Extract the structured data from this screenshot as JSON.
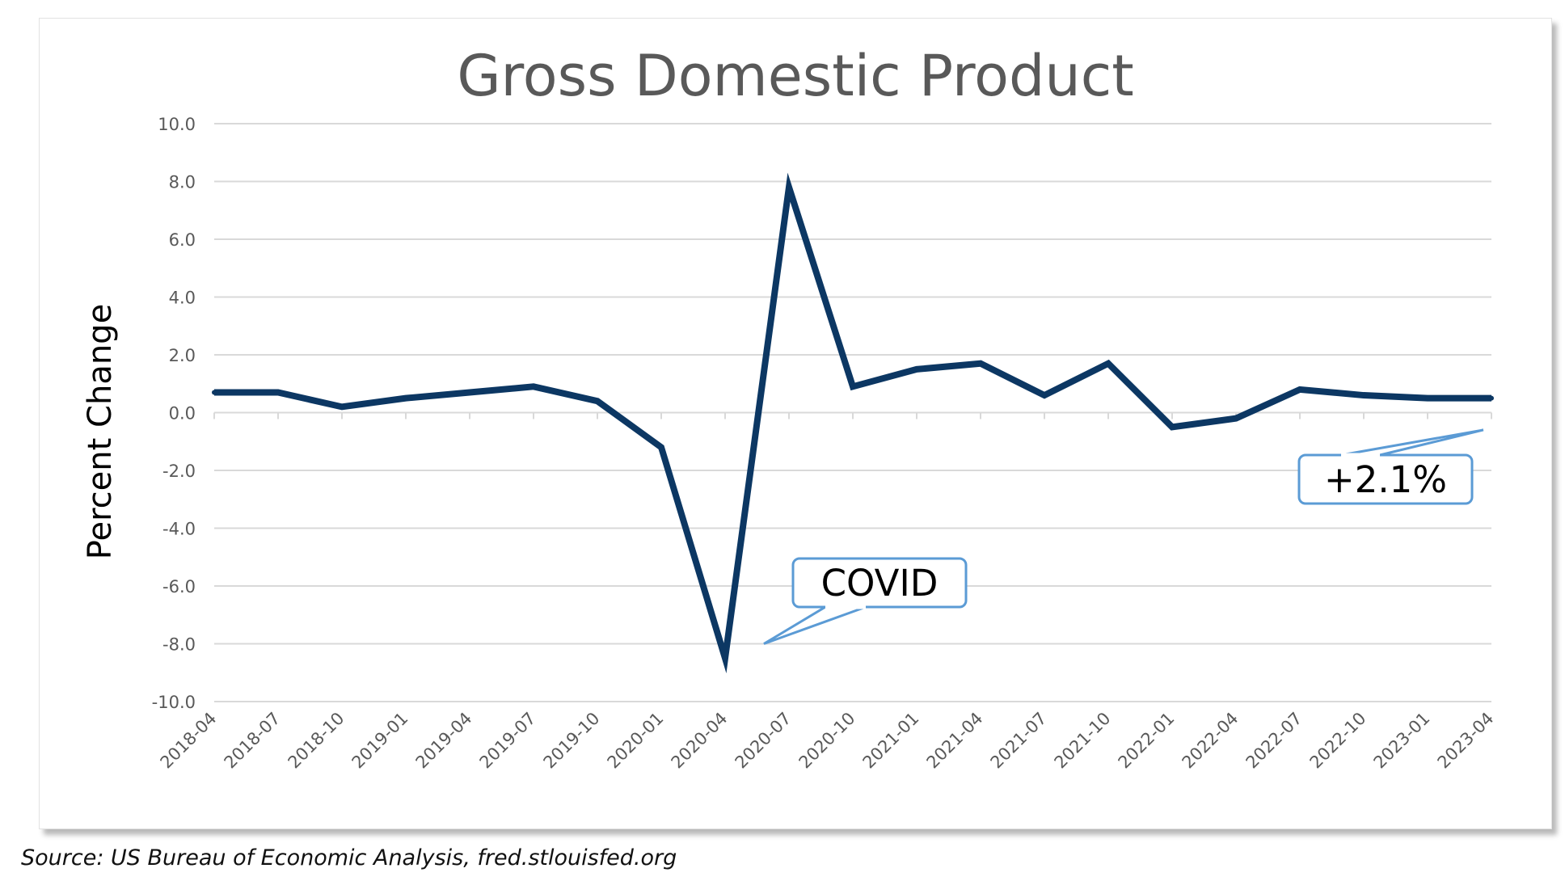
{
  "chart_data": {
    "type": "line",
    "title": "Gross Domestic Product",
    "ylabel": "Percent Change",
    "xlabel": "",
    "ylim": [
      -10,
      10
    ],
    "yticks": [
      10,
      8,
      6,
      4,
      2,
      0,
      -2,
      -4,
      -6,
      -8,
      -10
    ],
    "ytick_labels": [
      "10.0",
      "8.0",
      "6.0",
      "4.0",
      "2.0",
      "0.0",
      "-2.0",
      "-4.0",
      "-6.0",
      "-8.0",
      "-10.0"
    ],
    "grid": "horizontal",
    "legend": "none",
    "categories": [
      "2018-04",
      "2018-07",
      "2018-10",
      "2019-01",
      "2019-04",
      "2019-07",
      "2019-10",
      "2020-01",
      "2020-04",
      "2020-07",
      "2020-10",
      "2021-01",
      "2021-04",
      "2021-07",
      "2021-10",
      "2022-01",
      "2022-04",
      "2022-07",
      "2022-10",
      "2023-01",
      "2023-04"
    ],
    "series": [
      {
        "values": [
          0.7,
          0.7,
          0.2,
          0.5,
          0.7,
          0.9,
          0.4,
          -1.2,
          -8.5,
          7.8,
          0.9,
          1.5,
          1.7,
          0.6,
          1.7,
          -0.5,
          -0.2,
          0.8,
          0.6,
          0.5,
          0.5
        ]
      }
    ],
    "annotations": [
      {
        "text": "COVID",
        "target_category": "2020-04",
        "target_value": -8.0
      },
      {
        "text": "+2.1%",
        "target_category": "2023-04",
        "target_value": -0.6
      }
    ]
  },
  "source": "Source: US Bureau of Economic Analysis, fred.stlouisfed.org",
  "colors": {
    "series_line": "#0c3763",
    "grid": "#d9d9d9",
    "tick_text": "#595959",
    "title_text": "#595959",
    "callout_border": "#5b9bd5"
  }
}
